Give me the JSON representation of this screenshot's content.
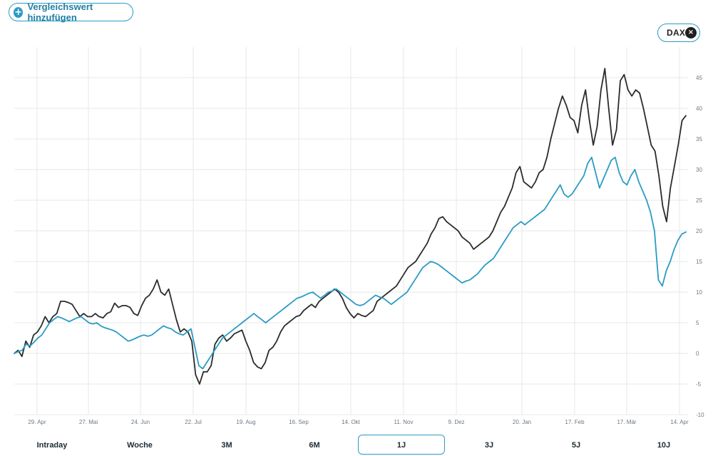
{
  "add_compare_label": "Vergleichswert hinzufügen",
  "index_chip": {
    "label": "DAX",
    "close_glyph": "×"
  },
  "ranges": [
    {
      "label": "Intraday",
      "active": false
    },
    {
      "label": "Woche",
      "active": false
    },
    {
      "label": "3M",
      "active": false
    },
    {
      "label": "6M",
      "active": false
    },
    {
      "label": "1J",
      "active": true
    },
    {
      "label": "3J",
      "active": false
    },
    {
      "label": "5J",
      "active": false
    },
    {
      "label": "10J",
      "active": false
    }
  ],
  "colors": {
    "stock": "#2b2b2b",
    "index": "#2a9bc4",
    "grid": "#e6e8ea",
    "accent": "#2a9bc4"
  },
  "chart_data": {
    "type": "line",
    "xlabel": "",
    "ylabel": "",
    "ylim": [
      -10,
      50
    ],
    "y_ticks": [
      -10,
      -5,
      0,
      5,
      10,
      15,
      20,
      25,
      30,
      35,
      40,
      45
    ],
    "x_ticks": [
      "29. Apr",
      "27. Mai",
      "24. Jun",
      "22. Jul",
      "19. Aug",
      "16. Sep",
      "14. Okt",
      "11. Nov",
      "9. Dez",
      "20. Jan",
      "17. Feb",
      "17. Mär",
      "14. Apr"
    ],
    "grid": true,
    "legend": "none",
    "series": [
      {
        "name": "",
        "color": "#2b2b2b",
        "values": [
          0,
          0.5,
          -0.5,
          2,
          1,
          3,
          3.5,
          4.5,
          6,
          5,
          6,
          6.5,
          8.5,
          8.5,
          8.3,
          8,
          7,
          6,
          6.5,
          6,
          6,
          6.5,
          6,
          5.8,
          6.5,
          6.8,
          8.2,
          7.5,
          7.8,
          7.8,
          7.5,
          6.5,
          6.2,
          7.8,
          9,
          9.5,
          10.5,
          12,
          10,
          9.5,
          10.5,
          8,
          5.5,
          3.5,
          4,
          3.5,
          2,
          -3.5,
          -5,
          -3,
          -3,
          -2,
          1.5,
          2.5,
          3,
          2,
          2.5,
          3.2,
          3.5,
          3.8,
          2,
          0.5,
          -1.5,
          -2.2,
          -2.5,
          -1.5,
          0.5,
          1,
          2,
          3.5,
          4.5,
          5,
          5.5,
          6,
          6.2,
          7,
          7.5,
          8,
          7.5,
          8.5,
          9,
          9.5,
          10,
          10.5,
          10,
          9,
          7.5,
          6.5,
          5.8,
          6.5,
          6.2,
          6,
          6.5,
          7,
          8.5,
          9,
          9.5,
          10,
          10.5,
          11,
          12,
          13,
          14,
          14.5,
          15,
          16,
          17,
          18,
          19.5,
          20.5,
          22,
          22.3,
          21.5,
          21,
          20.5,
          20,
          19,
          18.5,
          18,
          17,
          17.5,
          18,
          18.5,
          19,
          20,
          21.5,
          23,
          24,
          25.5,
          27,
          29.5,
          30.5,
          28,
          27.5,
          27,
          28,
          29.5,
          30,
          32,
          35,
          37.5,
          40,
          42,
          40.5,
          38.5,
          38,
          36,
          40.5,
          43,
          38,
          34,
          37,
          43,
          46.5,
          40,
          34,
          36.5,
          44.5,
          45.5,
          43,
          42,
          43,
          42.5,
          40,
          37,
          34,
          33,
          29,
          24,
          21.5,
          27,
          30.5,
          34,
          38,
          38.8
        ]
      },
      {
        "name": "",
        "color": "#2a9bc4",
        "values": [
          0,
          0.3,
          0.5,
          1.5,
          1.2,
          1.8,
          2.5,
          3,
          4,
          5,
          5.5,
          6,
          5.8,
          5.5,
          5.2,
          5.5,
          5.8,
          6,
          5.5,
          5,
          4.8,
          5,
          4.5,
          4.2,
          4,
          3.8,
          3.5,
          3,
          2.5,
          2,
          2.2,
          2.5,
          2.8,
          3,
          2.8,
          3,
          3.5,
          4,
          4.5,
          4.2,
          4,
          3.5,
          3.2,
          3,
          3.5,
          4,
          1,
          -2,
          -2.5,
          -1.5,
          -0.5,
          0.5,
          1.5,
          2.5,
          3,
          3.5,
          4,
          4.5,
          5,
          5.5,
          6,
          6.5,
          6,
          5.5,
          5,
          5.5,
          6,
          6.5,
          7,
          7.5,
          8,
          8.5,
          9,
          9.2,
          9.5,
          9.8,
          10,
          9.5,
          9,
          9.5,
          10,
          10.2,
          10.5,
          10,
          9.5,
          9,
          8.5,
          8,
          7.8,
          8,
          8.5,
          9,
          9.5,
          9.2,
          9,
          8.5,
          8,
          8.5,
          9,
          9.5,
          10,
          11,
          12,
          13,
          14,
          14.5,
          15,
          14.8,
          14.5,
          14,
          13.5,
          13,
          12.5,
          12,
          11.5,
          11.8,
          12,
          12.5,
          13,
          13.8,
          14.5,
          15,
          15.5,
          16.5,
          17.5,
          18.5,
          19.5,
          20.5,
          21,
          21.5,
          21,
          21.5,
          22,
          22.5,
          23,
          23.5,
          24.5,
          25.5,
          26.5,
          27.5,
          26,
          25.5,
          26,
          27,
          28,
          29,
          31,
          32,
          29.5,
          27,
          28.5,
          30,
          31.5,
          32,
          29.5,
          28,
          27.5,
          29,
          30,
          28,
          26.5,
          25,
          23,
          20,
          12,
          11,
          13.5,
          15,
          17,
          18.5,
          19.5,
          19.8
        ]
      }
    ]
  }
}
